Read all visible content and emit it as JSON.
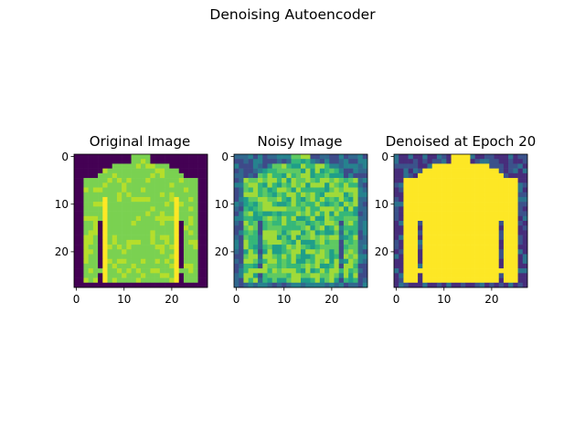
{
  "figure": {
    "suptitle": "Denoising Autoencoder"
  },
  "chart_data": [
    {
      "type": "heatmap",
      "title": "Original Image",
      "grid": false,
      "xlim": [
        -0.5,
        27.5
      ],
      "ylim": [
        27.5,
        -0.5
      ],
      "xticks": [
        0,
        10,
        20
      ],
      "yticks": [
        0,
        10,
        20
      ],
      "image_size": [
        28,
        28
      ],
      "colormap": "viridis",
      "content": "clean long-sleeve shirt/jacket silhouette, mid-to-bright green-yellow values on dark purple background",
      "palette": {
        "background": "#440154",
        "body": "#7ad151",
        "edge": "#b5de2b",
        "stripe": "#fde725"
      }
    },
    {
      "type": "heatmap",
      "title": "Noisy Image",
      "grid": false,
      "xlim": [
        -0.5,
        27.5
      ],
      "ylim": [
        27.5,
        -0.5
      ],
      "xticks": [
        0,
        10,
        20
      ],
      "yticks": [
        0,
        10,
        20
      ],
      "image_size": [
        28,
        28
      ],
      "colormap": "viridis",
      "content": "same shirt with heavy random pixel noise, teal/blue background speckle",
      "palette": {
        "background": "#31688e",
        "body": "#5ec962",
        "noise_low": "#26828e",
        "noise_high": "#a0da39"
      }
    },
    {
      "type": "heatmap",
      "title": "Denoised at Epoch 20",
      "grid": false,
      "xlim": [
        -0.5,
        27.5
      ],
      "ylim": [
        27.5,
        -0.5
      ],
      "xticks": [
        0,
        10,
        20
      ],
      "yticks": [
        0,
        10,
        20
      ],
      "image_size": [
        28,
        28
      ],
      "colormap": "viridis",
      "content": "smooth reconstructed shirt, saturated yellow body on purple/blue background",
      "palette": {
        "background": "#472d7b",
        "body": "#fde725",
        "edge": "#3b528b"
      }
    }
  ]
}
